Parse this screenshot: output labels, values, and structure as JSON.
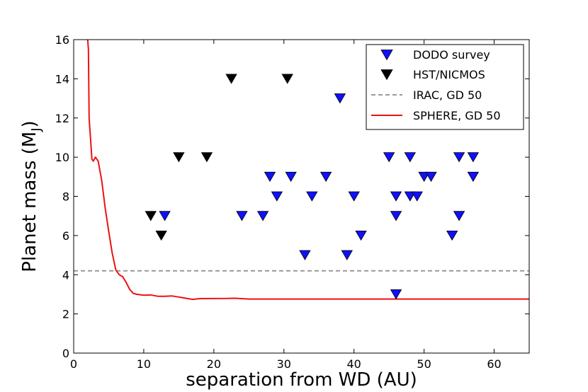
{
  "chart_data": {
    "type": "scatter",
    "xlabel": "separation from WD (AU)",
    "ylabel_main": "Planet mass (M",
    "ylabel_sub": "J",
    "ylabel_close": ")",
    "xlim": [
      0,
      65
    ],
    "ylim": [
      0,
      16
    ],
    "x_ticks": [
      0,
      10,
      20,
      30,
      40,
      50,
      60
    ],
    "y_ticks": [
      0,
      2,
      4,
      6,
      8,
      10,
      12,
      14,
      16
    ],
    "grid": false,
    "legend_position": "top-right",
    "series": [
      {
        "name": "DODO survey",
        "kind": "marker",
        "marker": "down-triangle",
        "color": "#1010ff",
        "points": [
          [
            13,
            7
          ],
          [
            24,
            7
          ],
          [
            27,
            7
          ],
          [
            28,
            9
          ],
          [
            29,
            8
          ],
          [
            31,
            9
          ],
          [
            33,
            5
          ],
          [
            34,
            8
          ],
          [
            36,
            9
          ],
          [
            38,
            13
          ],
          [
            39,
            5
          ],
          [
            40,
            8
          ],
          [
            41,
            6
          ],
          [
            45,
            10
          ],
          [
            46,
            8
          ],
          [
            46,
            7
          ],
          [
            46,
            3
          ],
          [
            48,
            10
          ],
          [
            48,
            8
          ],
          [
            49,
            8
          ],
          [
            50,
            9
          ],
          [
            51,
            9
          ],
          [
            54,
            6
          ],
          [
            55,
            10
          ],
          [
            55,
            7
          ],
          [
            57,
            10
          ],
          [
            57,
            9
          ]
        ]
      },
      {
        "name": "HST/NICMOS",
        "kind": "marker",
        "marker": "down-triangle",
        "color": "#000000",
        "points": [
          [
            11,
            7
          ],
          [
            12.5,
            6
          ],
          [
            15,
            10
          ],
          [
            19,
            10
          ],
          [
            22.5,
            14
          ],
          [
            30.5,
            14
          ]
        ]
      },
      {
        "name": "IRAC, GD 50",
        "kind": "line",
        "style": "dashed",
        "color": "#999999",
        "points": [
          [
            0,
            4.2
          ],
          [
            65,
            4.2
          ]
        ]
      },
      {
        "name": "SPHERE, GD 50",
        "kind": "line",
        "style": "solid",
        "color": "#ee1111",
        "points": [
          [
            1.9,
            16.5
          ],
          [
            2.1,
            15.5
          ],
          [
            2.2,
            12
          ],
          [
            2.4,
            11
          ],
          [
            2.6,
            9.9
          ],
          [
            2.8,
            9.8
          ],
          [
            3.1,
            10.0
          ],
          [
            3.5,
            9.8
          ],
          [
            4,
            8.8
          ],
          [
            4.5,
            7.4
          ],
          [
            5,
            6.2
          ],
          [
            5.5,
            5.1
          ],
          [
            6,
            4.25
          ],
          [
            6.5,
            4.0
          ],
          [
            7,
            3.9
          ],
          [
            7.5,
            3.6
          ],
          [
            8,
            3.25
          ],
          [
            8.5,
            3.05
          ],
          [
            9,
            3.0
          ],
          [
            10,
            2.95
          ],
          [
            11,
            2.97
          ],
          [
            12,
            2.9
          ],
          [
            13,
            2.9
          ],
          [
            14,
            2.92
          ],
          [
            15,
            2.86
          ],
          [
            16,
            2.8
          ],
          [
            17,
            2.74
          ],
          [
            18,
            2.78
          ],
          [
            22,
            2.79
          ],
          [
            23,
            2.8
          ],
          [
            25,
            2.76
          ],
          [
            65,
            2.76
          ]
        ]
      }
    ]
  }
}
